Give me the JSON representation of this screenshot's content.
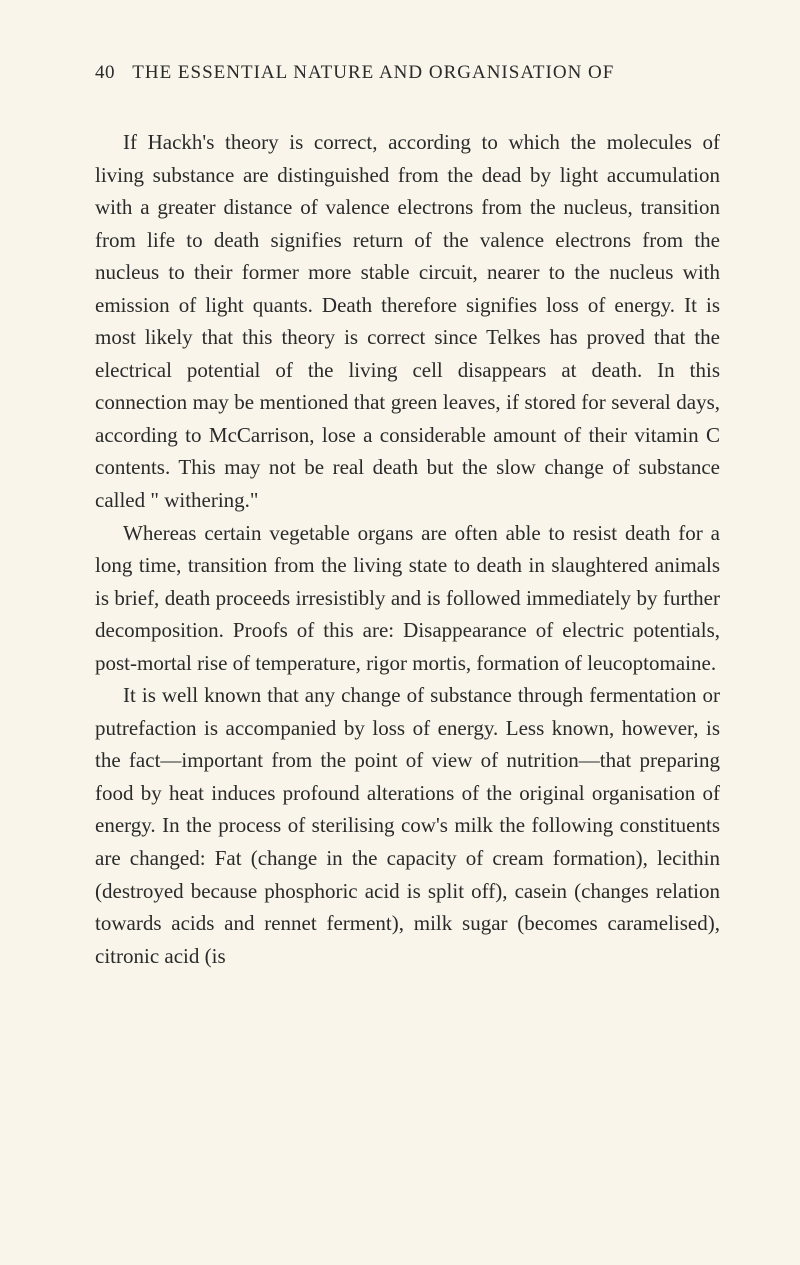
{
  "header": {
    "page_number": "40",
    "title": "THE ESSENTIAL NATURE AND ORGANISATION OF"
  },
  "paragraphs": {
    "p1": "If Hackh's theory is correct, according to which the molecules of living substance are distinguished from the dead by light accumulation with a greater distance of valence electrons from the nucleus, transition from life to death signifies return of the valence electrons from the nucleus to their former more stable circuit, nearer to the nucleus with emission of light quants. Death therefore signifies loss of energy. It is most likely that this theory is correct since Telkes has proved that the electrical potential of the living cell disappears at death. In this connection may be mentioned that green leaves, if stored for several days, according to McCarrison, lose a considerable amount of their vitamin C contents. This may not be real death but the slow change of substance called \" withering.\"",
    "p2": "Whereas certain vegetable organs are often able to resist death for a long time, transition from the living state to death in slaughtered animals is brief, death proceeds irresistibly and is followed immediately by further decomposition. Proofs of this are: Disappearance of electric potentials, post-mortal rise of temperature, rigor mortis, formation of leucoptomaine.",
    "p3": "It is well known that any change of substance through fermentation or putrefaction is accompanied by loss of energy. Less known, however, is the fact—important from the point of view of nutrition—that preparing food by heat induces profound alterations of the original organisation of energy. In the process of sterilising cow's milk the following constituents are changed: Fat (change in the capacity of cream formation), lecithin (destroyed because phosphoric acid is split off), casein (changes relation towards acids and rennet ferment), milk sugar (becomes caramelised), citronic acid (is"
  }
}
